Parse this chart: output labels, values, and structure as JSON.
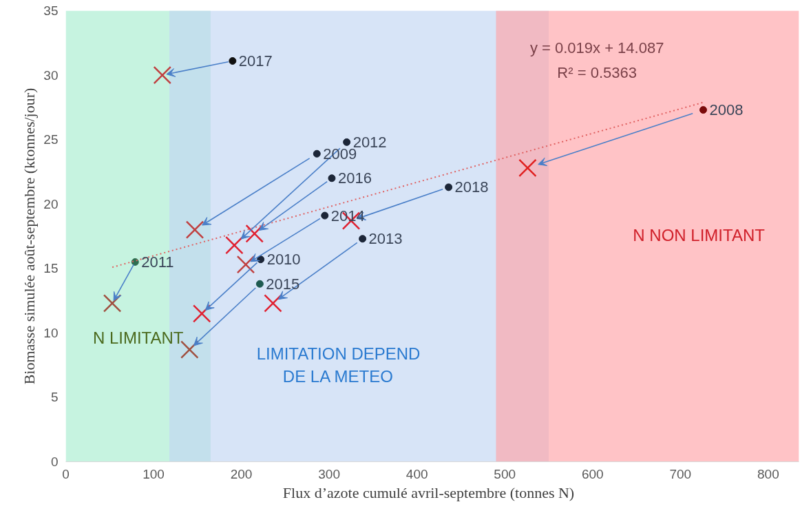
{
  "chart_data": {
    "type": "scatter",
    "xlabel": "Flux d’azote cumulé  avril-septembre  (tonnes N)",
    "ylabel": "Biomasse simulée août-septembre (ktonnes/jour)",
    "xlim": [
      0,
      835
    ],
    "ylim": [
      0,
      35
    ],
    "xticks": [
      0,
      100,
      200,
      300,
      400,
      500,
      600,
      700,
      800
    ],
    "yticks": [
      0,
      5,
      10,
      15,
      20,
      25,
      30,
      35
    ],
    "grid": false,
    "series": [
      {
        "marker": "circle",
        "x": [
          190,
          726,
          320,
          286,
          303,
          436,
          295,
          338,
          222,
          79,
          221
        ],
        "values": [
          31.1,
          27.3,
          24.8,
          23.9,
          22.0,
          21.3,
          19.1,
          17.3,
          15.7,
          15.5,
          13.8
        ],
        "colors": [
          "#111111",
          "#7a0a0a",
          "#1c2638",
          "#1c2638",
          "#1c2638",
          "#1c2638",
          "#1c2638",
          "#1c2638",
          "#1c2638",
          "#2e6e50",
          "#1e5a50"
        ]
      },
      {
        "marker": "cross",
        "x": [
          110,
          526,
          192,
          147,
          215,
          325,
          205,
          236,
          155,
          53,
          141
        ],
        "values": [
          30.0,
          22.8,
          16.8,
          18.0,
          17.7,
          18.7,
          15.3,
          12.3,
          11.5,
          12.3,
          8.7
        ],
        "colors": [
          "#c04040",
          "#e02020",
          "#e02030",
          "#c04040",
          "#e02030",
          "#e02030",
          "#c04040",
          "#e02030",
          "#e02030",
          "#a05040",
          "#a05040"
        ]
      },
      {
        "type": "line",
        "line_style": "dotted",
        "color": "#e06060",
        "x": [
          53,
          726
        ],
        "values": [
          15.09,
          27.88
        ]
      }
    ],
    "bands": [
      {
        "axis": "x",
        "from": 0,
        "to": 165,
        "label": "N LIMITANT",
        "color": "#a8ecd0"
      },
      {
        "axis": "x",
        "from": 118,
        "to": 550,
        "label": "LIMITATION DEPEND DE LA METEO",
        "color": "#c2d6f2"
      },
      {
        "axis": "x",
        "from": 490,
        "to": 835,
        "label": "N NON LIMITANT",
        "color": "#ffa3a8"
      }
    ],
    "annotations": [
      {
        "text": "2017",
        "x": 190,
        "y": 31.1
      },
      {
        "text": "2008",
        "x": 726,
        "y": 27.3
      },
      {
        "text": "2012",
        "x": 320,
        "y": 24.8
      },
      {
        "text": "2009",
        "x": 286,
        "y": 23.9
      },
      {
        "text": "2016",
        "x": 303,
        "y": 22.0
      },
      {
        "text": "2018",
        "x": 436,
        "y": 21.3
      },
      {
        "text": "2014",
        "x": 295,
        "y": 19.1
      },
      {
        "text": "2013",
        "x": 338,
        "y": 17.3
      },
      {
        "text": "2010",
        "x": 222,
        "y": 15.7
      },
      {
        "text": "2011",
        "x": 79,
        "y": 15.5
      },
      {
        "text": "2015",
        "x": 221,
        "y": 13.8
      },
      "y = 0.019x + 14.087",
      "R² = 0.5363"
    ]
  }
}
